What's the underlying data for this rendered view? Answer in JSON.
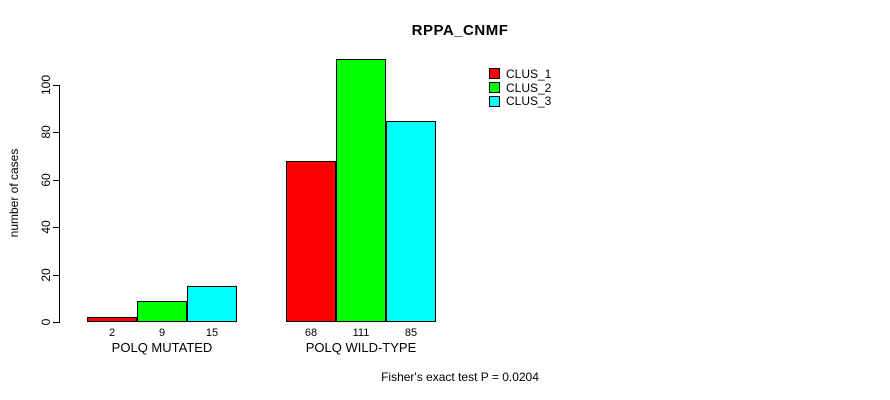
{
  "chart_data": {
    "type": "bar",
    "title": "RPPA_CNMF",
    "xlabel": "",
    "ylabel": "number of cases",
    "categories": [
      "POLQ MUTATED",
      "POLQ WILD-TYPE"
    ],
    "series": [
      {
        "name": "CLUS_1",
        "color": "#ff0000",
        "values": [
          2,
          68
        ]
      },
      {
        "name": "CLUS_2",
        "color": "#00ff00",
        "values": [
          9,
          111
        ]
      },
      {
        "name": "CLUS_3",
        "color": "#00ffff",
        "values": [
          15,
          85
        ]
      }
    ],
    "bar_value_labels": [
      [
        "2",
        "9",
        "15"
      ],
      [
        "68",
        "111",
        "85"
      ]
    ],
    "yticks": [
      "0",
      "20",
      "40",
      "60",
      "80",
      "100"
    ],
    "ytick_values": [
      0,
      20,
      40,
      60,
      80,
      100
    ],
    "ylim": [
      0,
      115
    ],
    "grid": false,
    "legend_position": "top-right",
    "annotation": "Fisher's exact test P = 0.0204",
    "colors": {
      "background": "#ffffff",
      "text": "#000000",
      "bar_border": "#000000"
    }
  }
}
